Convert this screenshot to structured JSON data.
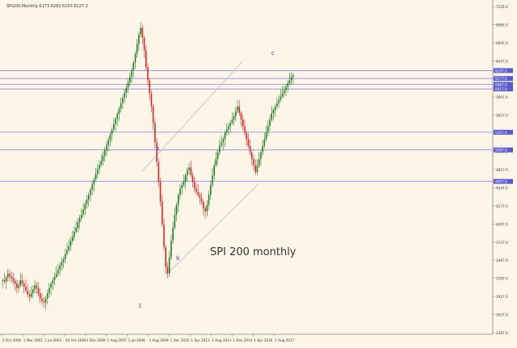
{
  "window": {
    "title": "SPI200,Monthly 6173 6282 6153 6227.3"
  },
  "colors": {
    "background": "#fdf6e8",
    "up_candle": "#1a7a1a",
    "down_candle": "#e02020",
    "horizontal_lines": "#8a8ae0",
    "channel_lines": "#c8c8c8",
    "wave_label_blue": "#3a3ad0",
    "wave_label_red": "#d02020",
    "axis_text": "#333333"
  },
  "annotation": {
    "title": "SPI 200 monthly"
  },
  "wave_labels": [
    {
      "text": "a",
      "color": "blue"
    },
    {
      "text": "b",
      "color": "blue"
    },
    {
      "text": "c",
      "color": "blue"
    },
    {
      "text": "1",
      "color": "red"
    }
  ],
  "chart_data": {
    "type": "candlestick",
    "title": "SPI 200 monthly",
    "ylim": [
      2300,
      7300
    ],
    "y_ticks": [
      "7235.0",
      "6965.0",
      "6695.0",
      "6437.0",
      "6167.0",
      "5897.0",
      "5627.0",
      "5357.0",
      "5087.0",
      "4817.0",
      "4547.0",
      "4277.0",
      "4007.0",
      "3737.0",
      "3467.0",
      "3197.0",
      "2927.0",
      "2657.0",
      "2387.0"
    ],
    "x_ticks": [
      "2 Oct 2000",
      "1 Mar 2002",
      "1 Jul 2003",
      "30 Oct 2004",
      "1 Dec 2006",
      "1 Aug 2007",
      "1 Jul 2008",
      "1 Aug 2009",
      "1 Dec 2010",
      "1 Apr 2012",
      "1 Aug 2013",
      "1 Dec 2014",
      "1 Apr 2016",
      "1 Aug 2017"
    ],
    "horizontal_levels": [
      6297.0,
      6177.0,
      6087.0,
      6017.0,
      5357.0,
      5087.0,
      4607.0
    ],
    "price_labels": [
      "6297.0",
      "6177.0",
      "6087.0",
      "6017.0",
      "5357.0",
      "5087.0",
      "4607.0"
    ],
    "prices": [
      3100,
      3080,
      3140,
      3200,
      3160,
      3130,
      3090,
      3050,
      2980,
      3020,
      3100,
      3050,
      3000,
      2940,
      2880,
      2850,
      2900,
      2960,
      3020,
      2980,
      2900,
      2820,
      2780,
      2760,
      2820,
      2900,
      2980,
      3050,
      3100,
      3150,
      3200,
      3260,
      3320,
      3380,
      3420,
      3500,
      3560,
      3620,
      3700,
      3760,
      3840,
      3900,
      3980,
      4050,
      4100,
      4180,
      4260,
      4330,
      4400,
      4480,
      4560,
      4640,
      4720,
      4800,
      4860,
      4920,
      5000,
      5080,
      5160,
      5240,
      5320,
      5400,
      5480,
      5560,
      5640,
      5720,
      5800,
      5880,
      5960,
      6040,
      6120,
      6200,
      6300,
      6420,
      6550,
      6700,
      6850,
      6950,
      6800,
      6600,
      6350,
      6150,
      5950,
      5750,
      5500,
      5200,
      4900,
      4600,
      4300,
      3950,
      3600,
      3300,
      3200,
      3450,
      3700,
      3900,
      4100,
      4250,
      4400,
      4500,
      4550,
      4600,
      4700,
      4780,
      4820,
      4700,
      4600,
      4500,
      4450,
      4400,
      4350,
      4300,
      4200,
      4150,
      4250,
      4400,
      4550,
      4700,
      4850,
      4950,
      5050,
      5150,
      5200,
      5250,
      5350,
      5400,
      5450,
      5500,
      5550,
      5600,
      5680,
      5750,
      5650,
      5550,
      5450,
      5350,
      5250,
      5150,
      5050,
      4950,
      4850,
      4750,
      4850,
      4950,
      5050,
      5150,
      5250,
      5350,
      5450,
      5550,
      5650,
      5700,
      5750,
      5800,
      5850,
      5900,
      5950,
      6000,
      6050,
      6100,
      6150,
      6200,
      6227
    ]
  }
}
